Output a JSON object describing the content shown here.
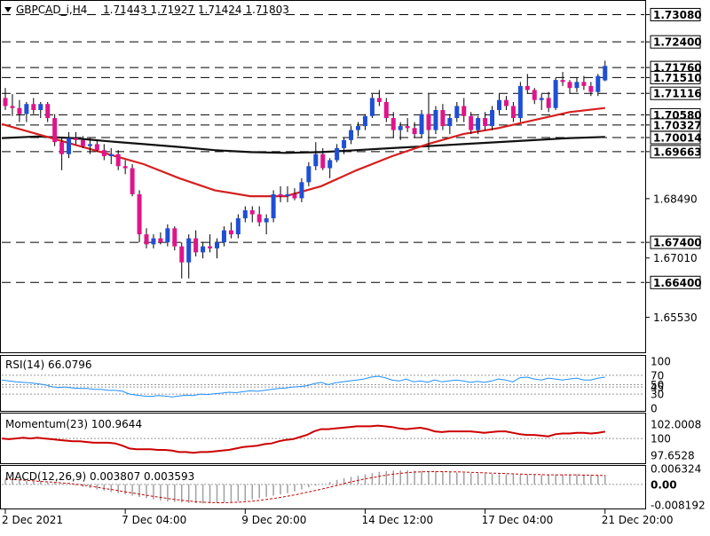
{
  "header": {
    "symbol": "GBPCAD_i,H4",
    "ohlc": "1.71443 1.71927 1.71424 1.71803"
  },
  "colors": {
    "bull": "#1f4fd6",
    "bear": "#e0148a",
    "ma_fast": "#d61f1f",
    "ma_slow": "#111111",
    "rsi": "#1e90ff",
    "momentum": "#cc0000",
    "macd": "#cc0000",
    "levels": "#000000"
  },
  "chart_data": [
    {
      "type": "candlestick",
      "title": "GBPCAD_i,H4",
      "ylim": [
        1.6468,
        1.734
      ],
      "y_ticks": [
        "1.73080",
        "1.72400",
        "1.71760",
        "1.71510",
        "1.71116",
        "1.70580",
        "1.70327",
        "1.70014",
        "1.69663",
        "1.68490",
        "1.67400",
        "1.67010",
        "1.66400",
        "1.65530"
      ],
      "levels": [
        "1.73080",
        "1.72400",
        "1.71760",
        "1.71510",
        "1.71116",
        "1.70580",
        "1.70327",
        "1.70014",
        "1.69663",
        "1.67400",
        "1.66400"
      ],
      "x_labels": [
        "2 Dec 2021",
        "7 Dec 04:00",
        "9 Dec 20:00",
        "14 Dec 12:00",
        "17 Dec 04:00",
        "21 Dec 20:00"
      ],
      "candles": [
        [
          1.71,
          1.7125,
          1.707,
          1.708
        ],
        [
          1.708,
          1.711,
          1.7055,
          1.7075
        ],
        [
          1.7075,
          1.7095,
          1.704,
          1.706
        ],
        [
          1.706,
          1.709,
          1.704,
          1.7085
        ],
        [
          1.7085,
          1.71,
          1.706,
          1.707
        ],
        [
          1.707,
          1.709,
          1.705,
          1.7085
        ],
        [
          1.7085,
          1.709,
          1.704,
          1.705
        ],
        [
          1.705,
          1.706,
          1.698,
          1.699
        ],
        [
          1.699,
          1.7,
          1.692,
          1.696
        ],
        [
          1.696,
          1.7015,
          1.695,
          1.7
        ],
        [
          1.7,
          1.7015,
          1.6985,
          1.6995
        ],
        [
          1.6995,
          1.7005,
          1.6975,
          1.698
        ],
        [
          1.698,
          1.7,
          1.696,
          1.6985
        ],
        [
          1.6985,
          1.6995,
          1.6965,
          1.697
        ],
        [
          1.697,
          1.6985,
          1.6945,
          1.6955
        ],
        [
          1.6955,
          1.6975,
          1.6935,
          1.696
        ],
        [
          1.696,
          1.697,
          1.692,
          1.693
        ],
        [
          1.693,
          1.6945,
          1.691,
          1.6925
        ],
        [
          1.6925,
          1.6935,
          1.6855,
          1.686
        ],
        [
          1.686,
          1.687,
          1.674,
          1.676
        ],
        [
          1.676,
          1.6775,
          1.6725,
          1.6735
        ],
        [
          1.6735,
          1.676,
          1.6725,
          1.675
        ],
        [
          1.675,
          1.6765,
          1.6735,
          1.674
        ],
        [
          1.674,
          1.6785,
          1.673,
          1.6775
        ],
        [
          1.6775,
          1.678,
          1.672,
          1.673
        ],
        [
          1.673,
          1.674,
          1.665,
          1.669
        ],
        [
          1.669,
          1.676,
          1.665,
          1.675
        ],
        [
          1.675,
          1.677,
          1.6705,
          1.6715
        ],
        [
          1.6715,
          1.674,
          1.67,
          1.673
        ],
        [
          1.673,
          1.676,
          1.6715,
          1.6725
        ],
        [
          1.6725,
          1.675,
          1.67,
          1.674
        ],
        [
          1.674,
          1.678,
          1.673,
          1.677
        ],
        [
          1.677,
          1.679,
          1.675,
          1.676
        ],
        [
          1.676,
          1.681,
          1.675,
          1.68
        ],
        [
          1.68,
          1.683,
          1.679,
          1.682
        ],
        [
          1.682,
          1.683,
          1.679,
          1.681
        ],
        [
          1.681,
          1.683,
          1.678,
          1.679
        ],
        [
          1.679,
          1.681,
          1.676,
          1.68
        ],
        [
          1.68,
          1.687,
          1.679,
          1.686
        ],
        [
          1.686,
          1.688,
          1.684,
          1.6855
        ],
        [
          1.6855,
          1.688,
          1.684,
          1.686
        ],
        [
          1.686,
          1.6875,
          1.6845,
          1.685
        ],
        [
          1.685,
          1.69,
          1.684,
          1.689
        ],
        [
          1.689,
          1.694,
          1.688,
          1.693
        ],
        [
          1.693,
          1.699,
          1.692,
          1.696
        ],
        [
          1.696,
          1.6975,
          1.692,
          1.6925
        ],
        [
          1.6925,
          1.695,
          1.69,
          1.6945
        ],
        [
          1.6945,
          1.6985,
          1.694,
          1.6975
        ],
        [
          1.6975,
          1.7,
          1.696,
          1.6995
        ],
        [
          1.6995,
          1.703,
          1.6985,
          1.702
        ],
        [
          1.702,
          1.704,
          1.7005,
          1.703
        ],
        [
          1.703,
          1.706,
          1.702,
          1.7055
        ],
        [
          1.7055,
          1.711,
          1.705,
          1.71
        ],
        [
          1.71,
          1.712,
          1.708,
          1.709
        ],
        [
          1.709,
          1.71,
          1.704,
          1.705
        ],
        [
          1.705,
          1.7065,
          1.7,
          1.702
        ],
        [
          1.702,
          1.704,
          1.6995,
          1.703
        ],
        [
          1.703,
          1.705,
          1.7015,
          1.7025
        ],
        [
          1.7025,
          1.704,
          1.7,
          1.701
        ],
        [
          1.701,
          1.707,
          1.7,
          1.706
        ],
        [
          1.706,
          1.711,
          1.697,
          1.702
        ],
        [
          1.702,
          1.708,
          1.701,
          1.707
        ],
        [
          1.707,
          1.7085,
          1.702,
          1.703
        ],
        [
          1.703,
          1.706,
          1.701,
          1.705
        ],
        [
          1.705,
          1.709,
          1.704,
          1.708
        ],
        [
          1.708,
          1.71,
          1.704,
          1.7055
        ],
        [
          1.7055,
          1.7065,
          1.701,
          1.702
        ],
        [
          1.702,
          1.7055,
          1.701,
          1.705
        ],
        [
          1.705,
          1.7065,
          1.702,
          1.703
        ],
        [
          1.703,
          1.708,
          1.702,
          1.707
        ],
        [
          1.707,
          1.711,
          1.706,
          1.7095
        ],
        [
          1.7095,
          1.7105,
          1.707,
          1.708
        ],
        [
          1.708,
          1.709,
          1.704,
          1.705
        ],
        [
          1.705,
          1.714,
          1.704,
          1.713
        ],
        [
          1.713,
          1.716,
          1.711,
          1.712
        ],
        [
          1.712,
          1.7125,
          1.7085,
          1.7095
        ],
        [
          1.7095,
          1.711,
          1.707,
          1.71
        ],
        [
          1.71,
          1.7115,
          1.7065,
          1.7075
        ],
        [
          1.7075,
          1.715,
          1.707,
          1.7145
        ],
        [
          1.7145,
          1.7165,
          1.713,
          1.714
        ],
        [
          1.714,
          1.7145,
          1.711,
          1.7125
        ],
        [
          1.7125,
          1.715,
          1.7115,
          1.714
        ],
        [
          1.714,
          1.7155,
          1.712,
          1.713
        ],
        [
          1.713,
          1.714,
          1.7105,
          1.7115
        ],
        [
          1.7115,
          1.716,
          1.7105,
          1.7155
        ],
        [
          1.7144,
          1.7193,
          1.7142,
          1.718
        ]
      ],
      "ma_fast": [
        1.7035,
        1.701,
        1.6985,
        1.696,
        1.6935,
        1.69,
        1.687,
        1.6855,
        1.6855,
        1.688,
        1.692,
        1.6955,
        1.6985,
        1.701,
        1.7025,
        1.7045,
        1.7065,
        1.7075
      ],
      "ma_slow": [
        1.7,
        1.7004,
        1.7,
        1.6992,
        1.6985,
        1.6978,
        1.697,
        1.6965,
        1.6963,
        1.6965,
        1.697,
        1.6975,
        1.698,
        1.6985,
        1.699,
        1.6995,
        1.7,
        1.7003
      ]
    },
    {
      "type": "line",
      "title": "RSI(14) 66.0796",
      "ylim": [
        0,
        100
      ],
      "y_ticks": [
        "100",
        "70",
        "50",
        "45",
        "30",
        "0"
      ],
      "values": [
        60,
        58,
        56,
        55,
        54,
        52,
        50,
        46,
        44,
        45,
        43,
        42,
        42,
        40,
        40,
        38,
        38,
        36,
        30,
        28,
        26,
        25,
        27,
        26,
        24,
        26,
        28,
        27,
        30,
        29,
        31,
        32,
        34,
        33,
        35,
        37,
        36,
        38,
        40,
        42,
        43,
        45,
        46,
        48,
        52,
        55,
        50,
        54,
        56,
        58,
        60,
        62,
        66,
        68,
        65,
        60,
        58,
        62,
        56,
        58,
        55,
        60,
        56,
        58,
        60,
        58,
        55,
        57,
        55,
        58,
        62,
        60,
        56,
        65,
        66,
        62,
        60,
        64,
        62,
        60,
        62,
        64,
        60,
        60,
        64,
        66
      ]
    },
    {
      "type": "line",
      "title": "Momentum(23) 100.9644",
      "ylim": [
        97.6528,
        102.0008
      ],
      "y_ticks": [
        "102.0008",
        "100",
        "97.6528"
      ],
      "values": [
        100.0,
        99.9,
        100.0,
        100.1,
        100.0,
        100.1,
        100.0,
        99.9,
        99.8,
        99.7,
        99.6,
        99.6,
        99.5,
        99.4,
        99.4,
        99.4,
        99.3,
        99.0,
        98.6,
        98.5,
        98.5,
        98.5,
        98.4,
        98.4,
        98.3,
        98.1,
        98.1,
        98.0,
        98.1,
        98.1,
        98.2,
        98.3,
        98.4,
        98.6,
        98.8,
        98.9,
        99.0,
        99.2,
        99.3,
        99.6,
        99.8,
        99.9,
        100.2,
        100.5,
        101.0,
        101.3,
        101.3,
        101.4,
        101.5,
        101.6,
        101.7,
        101.7,
        101.7,
        101.8,
        101.7,
        101.6,
        101.4,
        101.3,
        101.4,
        101.5,
        101.3,
        101.0,
        100.9,
        101.0,
        101.0,
        101.0,
        101.0,
        100.9,
        100.8,
        100.9,
        101.0,
        101.0,
        100.8,
        100.6,
        100.5,
        100.5,
        100.4,
        100.3,
        100.6,
        100.7,
        100.7,
        100.8,
        100.8,
        100.7,
        100.8,
        100.96
      ]
    },
    {
      "type": "bar",
      "title": "MACD(12,26,9) 0.003807 0.003593",
      "ylim": [
        -0.008192,
        0.006324
      ],
      "y_ticks": [
        "0.006324",
        "0.00",
        "-0.008192"
      ],
      "values": [
        0.002,
        0.0018,
        0.0016,
        0.0014,
        0.0012,
        0.001,
        0.0008,
        0.0006,
        0.0003,
        0.0,
        -0.0005,
        -0.001,
        -0.0015,
        -0.002,
        -0.0025,
        -0.003,
        -0.0035,
        -0.004,
        -0.0045,
        -0.005,
        -0.0055,
        -0.006,
        -0.0065,
        -0.0068,
        -0.007,
        -0.0072,
        -0.0074,
        -0.0075,
        -0.0076,
        -0.0075,
        -0.0074,
        -0.0072,
        -0.007,
        -0.0068,
        -0.0065,
        -0.006,
        -0.0055,
        -0.005,
        -0.0045,
        -0.004,
        -0.0035,
        -0.0028,
        -0.002,
        -0.0012,
        -0.0005,
        0.0002,
        0.001,
        0.0018,
        0.0025,
        0.003,
        0.0035,
        0.004,
        0.0045,
        0.005,
        0.0053,
        0.0055,
        0.0056,
        0.0056,
        0.0055,
        0.0054,
        0.0053,
        0.0052,
        0.005,
        0.0049,
        0.0048,
        0.0046,
        0.0045,
        0.0044,
        0.0043,
        0.0042,
        0.0041,
        0.004,
        0.004,
        0.0039,
        0.0039,
        0.0038,
        0.0038,
        0.0038,
        0.0039,
        0.004,
        0.004,
        0.004,
        0.0039,
        0.0038,
        0.0038,
        0.0038
      ],
      "signal": [
        0.0022,
        0.002,
        0.0018,
        0.0016,
        0.0014,
        0.0012,
        0.001,
        0.0008,
        0.0006,
        0.0004,
        0.0001,
        -0.0003,
        -0.0007,
        -0.0011,
        -0.0016,
        -0.002,
        -0.0025,
        -0.003,
        -0.0034,
        -0.0039,
        -0.0043,
        -0.0048,
        -0.0052,
        -0.0056,
        -0.006,
        -0.0063,
        -0.0066,
        -0.0069,
        -0.0071,
        -0.0072,
        -0.0073,
        -0.0073,
        -0.0072,
        -0.0071,
        -0.0069,
        -0.0067,
        -0.0064,
        -0.006,
        -0.0056,
        -0.0052,
        -0.0047,
        -0.0042,
        -0.0036,
        -0.003,
        -0.0024,
        -0.0018,
        -0.0011,
        -0.0004,
        0.0003,
        0.001,
        0.0016,
        0.0022,
        0.0027,
        0.0032,
        0.0037,
        0.0041,
        0.0044,
        0.0047,
        0.0049,
        0.005,
        0.0051,
        0.0051,
        0.0051,
        0.005,
        0.005,
        0.0049,
        0.0048,
        0.0047,
        0.0046,
        0.0045,
        0.0044,
        0.0043,
        0.0042,
        0.0041,
        0.004,
        0.0039,
        0.0039,
        0.0038,
        0.0038,
        0.0038,
        0.0038,
        0.0038,
        0.0037,
        0.0037,
        0.0036,
        0.0036
      ]
    }
  ]
}
